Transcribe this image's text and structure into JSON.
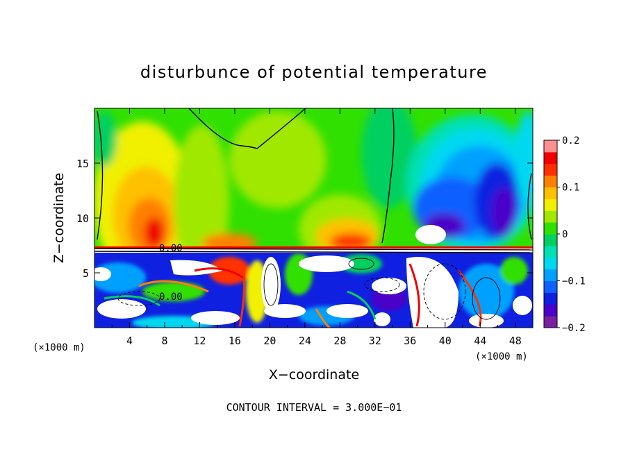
{
  "chart_data": {
    "type": "heatmap",
    "title": "disturbunce of potential temperature",
    "xlabel": "X−coordinate",
    "ylabel": "Z−coordinate",
    "x_unit_left": "(×1000 m)",
    "x_unit_right": "(×1000 m)",
    "xlim": [
      0,
      50
    ],
    "ylim": [
      0,
      20
    ],
    "x_ticks": [
      "4",
      "8",
      "12",
      "16",
      "20",
      "24",
      "28",
      "32",
      "36",
      "40",
      "44",
      "48"
    ],
    "y_ticks": [
      "5",
      "10",
      "15"
    ],
    "colorbar": {
      "range": [
        -0.2,
        0.2
      ],
      "tick_labels": [
        "0.2",
        "0.1",
        "0",
        "−0.1",
        "−0.2"
      ],
      "colors": [
        "#7a1fa0",
        "#4b00c8",
        "#1020e0",
        "#1060ff",
        "#00a0ff",
        "#00d8f0",
        "#00e0b0",
        "#00d060",
        "#30e000",
        "#a0e800",
        "#f0f000",
        "#ffc000",
        "#ff8000",
        "#ff3000",
        "#f00000",
        "#ff9090"
      ]
    },
    "contour_label": "0.00",
    "contour_interval": "CONTOUR INTERVAL = 3.000E−01",
    "grid": false,
    "colorbar_position": "right"
  }
}
